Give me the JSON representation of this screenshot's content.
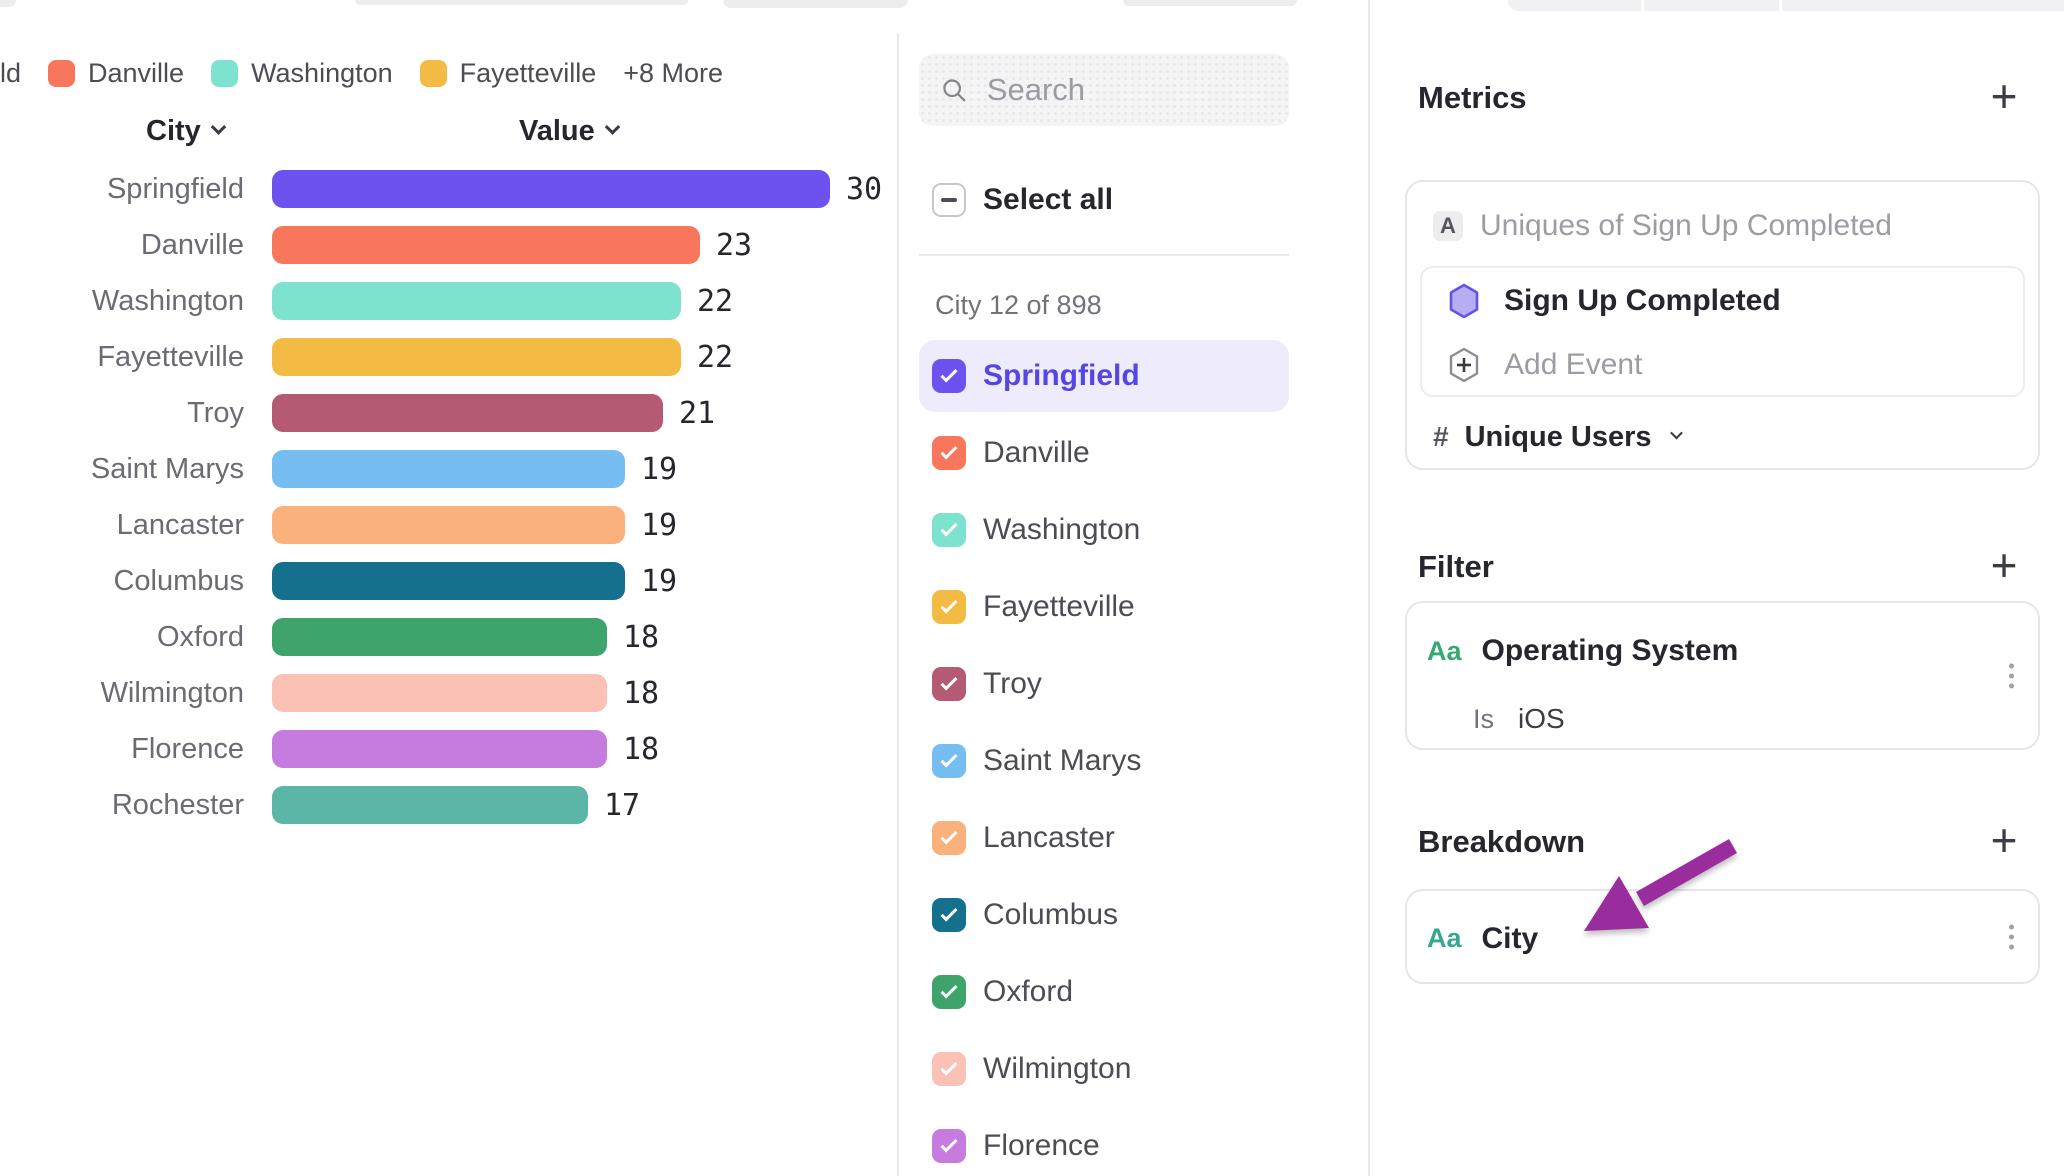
{
  "icons": {
    "plus": "+"
  },
  "colors": {
    "accent_purple": "#6E52F0",
    "selected_row_bg": "#EDEBFC",
    "selected_row_text": "#5546E4",
    "arrow_annotation": "#9A2D9D",
    "property_type_green": "#36A873"
  },
  "legend": {
    "items": [
      {
        "label": "ld",
        "color": null
      },
      {
        "label": "Danville",
        "color": "#F8765C"
      },
      {
        "label": "Washington",
        "color": "#7DE2CE"
      },
      {
        "label": "Fayetteville",
        "color": "#F4BB44"
      }
    ],
    "more_label": "+8 More"
  },
  "chart_data": {
    "type": "bar",
    "orientation": "horizontal",
    "col_headers": {
      "category": "City",
      "value": "Value"
    },
    "categories": [
      "Springfield",
      "Danville",
      "Washington",
      "Fayetteville",
      "Troy",
      "Saint Marys",
      "Lancaster",
      "Columbus",
      "Oxford",
      "Wilmington",
      "Florence",
      "Rochester"
    ],
    "values": [
      30,
      23,
      22,
      22,
      21,
      19,
      19,
      19,
      18,
      18,
      18,
      17
    ],
    "colors": [
      "#6E52F0",
      "#F8765C",
      "#7DE2CE",
      "#F4BB44",
      "#B45A72",
      "#76BDF1",
      "#FBB17C",
      "#15708E",
      "#3EA46B",
      "#FBC1B5",
      "#C67CDF",
      "#5BB6A7"
    ],
    "xlim": [
      0,
      30
    ],
    "value_labels_shown": true,
    "grid": false,
    "legend_position": "top"
  },
  "city_picker": {
    "search_placeholder": "Search",
    "select_all_label": "Select all",
    "count_label": "City 12 of 898",
    "items": [
      {
        "label": "Springfield",
        "color": "#6E52F0",
        "checked": true,
        "selected": true
      },
      {
        "label": "Danville",
        "color": "#F8765C",
        "checked": true,
        "selected": false
      },
      {
        "label": "Washington",
        "color": "#7DE2CE",
        "checked": true,
        "selected": false
      },
      {
        "label": "Fayetteville",
        "color": "#F4BB44",
        "checked": true,
        "selected": false
      },
      {
        "label": "Troy",
        "color": "#B45A72",
        "checked": true,
        "selected": false
      },
      {
        "label": "Saint Marys",
        "color": "#76BDF1",
        "checked": true,
        "selected": false
      },
      {
        "label": "Lancaster",
        "color": "#FBB17C",
        "checked": true,
        "selected": false
      },
      {
        "label": "Columbus",
        "color": "#15708E",
        "checked": true,
        "selected": false
      },
      {
        "label": "Oxford",
        "color": "#3EA46B",
        "checked": true,
        "selected": false
      },
      {
        "label": "Wilmington",
        "color": "#FBC1B5",
        "checked": true,
        "selected": false
      },
      {
        "label": "Florence",
        "color": "#C67CDF",
        "checked": true,
        "selected": false
      }
    ]
  },
  "inspector": {
    "metrics": {
      "title": "Metrics",
      "series_badge": "A",
      "metric_label": "Uniques of Sign Up Completed",
      "event_name": "Sign Up Completed",
      "add_event_label": "Add Event",
      "aggregation_prefix": "#",
      "aggregation": "Unique Users"
    },
    "filter": {
      "title": "Filter",
      "property_type": "Aa",
      "property": "Operating System",
      "operator": "Is",
      "value": "iOS"
    },
    "breakdown": {
      "title": "Breakdown",
      "property_type": "Aa",
      "property": "City"
    }
  }
}
